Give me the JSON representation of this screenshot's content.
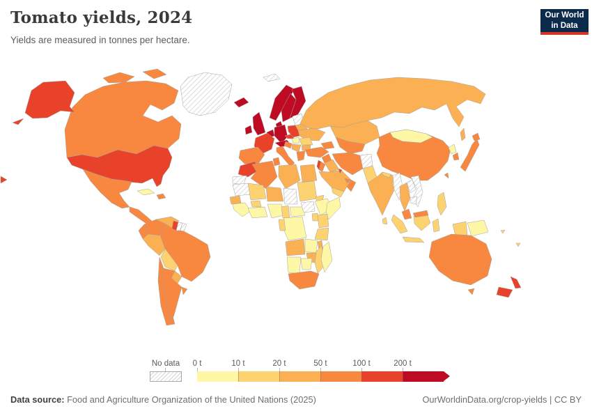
{
  "header": {
    "title": "Tomato yields, 2024",
    "subtitle": "Yields are measured in tonnes per hectare."
  },
  "logo": {
    "line1": "Our World",
    "line2": "in Data",
    "bg": "#0b2a4c",
    "accent": "#d8352a"
  },
  "legend": {
    "no_data_label": "No data",
    "tick_labels": [
      "0 t",
      "10 t",
      "20 t",
      "50 t",
      "100 t",
      "200 t"
    ],
    "bands": [
      "0-10",
      "10-20",
      "20-50",
      "50-100",
      "100-200",
      "200+"
    ]
  },
  "palette": {
    "0-10": "#fef8a6",
    "10-20": "#fdd271",
    "20-50": "#fbb153",
    "50-100": "#f8883f",
    "100-200": "#e8432a",
    "200+": "#be0b23",
    "no-data": "hatch"
  },
  "footer": {
    "source_label": "Data source:",
    "source_text": " Food and Agriculture Organization of the United Nations (2025)",
    "right_text": "OurWorldinData.org/crop-yields | CC BY"
  },
  "chart_data": {
    "type": "choropleth",
    "title": "Tomato yields, 2024",
    "unit": "tonnes per hectare",
    "bins": [
      0,
      10,
      20,
      50,
      100,
      200
    ],
    "legend_position": "bottom",
    "regions": [
      {
        "id": "usa",
        "name": "United States",
        "band": "100-200"
      },
      {
        "id": "canada",
        "name": "Canada",
        "band": "50-100"
      },
      {
        "id": "greenland",
        "name": "Greenland",
        "band": "no-data"
      },
      {
        "id": "mexico",
        "name": "Mexico",
        "band": "50-100"
      },
      {
        "id": "central-america",
        "name": "Central America",
        "band": "50-100"
      },
      {
        "id": "cuba",
        "name": "Cuba",
        "band": "0-10"
      },
      {
        "id": "hispaniola",
        "name": "Dominican Republic",
        "band": "50-100"
      },
      {
        "id": "colombia",
        "name": "Colombia",
        "band": "50-100"
      },
      {
        "id": "venezuela",
        "name": "Venezuela",
        "band": "20-50"
      },
      {
        "id": "guyana",
        "name": "Guyana",
        "band": "100-200"
      },
      {
        "id": "suriname",
        "name": "Suriname",
        "band": "no-data"
      },
      {
        "id": "french-guiana",
        "name": "French Guiana",
        "band": "no-data"
      },
      {
        "id": "ecuador",
        "name": "Ecuador",
        "band": "50-100"
      },
      {
        "id": "peru",
        "name": "Peru",
        "band": "20-50"
      },
      {
        "id": "brazil",
        "name": "Brazil",
        "band": "50-100"
      },
      {
        "id": "bolivia",
        "name": "Bolivia",
        "band": "10-20"
      },
      {
        "id": "paraguay",
        "name": "Paraguay",
        "band": "20-50"
      },
      {
        "id": "chile",
        "name": "Chile",
        "band": "50-100"
      },
      {
        "id": "argentina",
        "name": "Argentina",
        "band": "50-100"
      },
      {
        "id": "uruguay",
        "name": "Uruguay",
        "band": "50-100"
      },
      {
        "id": "iceland",
        "name": "Iceland",
        "band": "200+"
      },
      {
        "id": "svalbard",
        "name": "Svalbard",
        "band": "no-data"
      },
      {
        "id": "norway",
        "name": "Norway",
        "band": "200+"
      },
      {
        "id": "sweden",
        "name": "Sweden",
        "band": "200+"
      },
      {
        "id": "finland",
        "name": "Finland",
        "band": "200+"
      },
      {
        "id": "denmark",
        "name": "Denmark",
        "band": "200+"
      },
      {
        "id": "uk",
        "name": "United Kingdom",
        "band": "200+"
      },
      {
        "id": "ireland",
        "name": "Ireland",
        "band": "200+"
      },
      {
        "id": "benelux",
        "name": "Netherlands & Belgium",
        "band": "200+"
      },
      {
        "id": "germany",
        "name": "Germany",
        "band": "200+"
      },
      {
        "id": "alpine",
        "name": "Austria & Switzerland",
        "band": "200+"
      },
      {
        "id": "czechia",
        "name": "Czechia",
        "band": "100-200"
      },
      {
        "id": "france",
        "name": "France",
        "band": "100-200"
      },
      {
        "id": "spain",
        "name": "Spain & Portugal",
        "band": "50-100"
      },
      {
        "id": "italy",
        "name": "Italy",
        "band": "50-100"
      },
      {
        "id": "poland",
        "name": "Poland",
        "band": "100-200"
      },
      {
        "id": "baltics",
        "name": "Baltic states",
        "band": "no-data"
      },
      {
        "id": "belarus",
        "name": "Belarus",
        "band": "20-50"
      },
      {
        "id": "ukraine",
        "name": "Ukraine",
        "band": "20-50"
      },
      {
        "id": "hungary",
        "name": "Hungary",
        "band": "0-10"
      },
      {
        "id": "romania",
        "name": "Romania",
        "band": "10-20"
      },
      {
        "id": "balkans",
        "name": "Serbia & Balkans",
        "band": "20-50"
      },
      {
        "id": "croatia",
        "name": "Croatia",
        "band": "50-100"
      },
      {
        "id": "bulgaria",
        "name": "Bulgaria",
        "band": "20-50"
      },
      {
        "id": "greece",
        "name": "Greece",
        "band": "50-100"
      },
      {
        "id": "russia",
        "name": "Russia",
        "band": "20-50"
      },
      {
        "id": "kazakhstan",
        "name": "Kazakhstan",
        "band": "20-50"
      },
      {
        "id": "central-asia",
        "name": "Uzbekistan & Turkmenistan",
        "band": "50-100"
      },
      {
        "id": "caucasus",
        "name": "Caucasus",
        "band": "50-100"
      },
      {
        "id": "turkey",
        "name": "Turkey",
        "band": "50-100"
      },
      {
        "id": "syria",
        "name": "Syria",
        "band": "50-100"
      },
      {
        "id": "iraq",
        "name": "Iraq",
        "band": "20-50"
      },
      {
        "id": "israel",
        "name": "Israel",
        "band": "100-200"
      },
      {
        "id": "jordan",
        "name": "Jordan",
        "band": "50-100"
      },
      {
        "id": "saudi-arabia",
        "name": "Saudi Arabia",
        "band": "20-50"
      },
      {
        "id": "kuwait",
        "name": "Kuwait",
        "band": "100-200"
      },
      {
        "id": "yemen",
        "name": "Yemen",
        "band": "10-20"
      },
      {
        "id": "oman",
        "name": "Oman",
        "band": "50-100"
      },
      {
        "id": "uae",
        "name": "United Arab Emirates",
        "band": "50-100"
      },
      {
        "id": "iran",
        "name": "Iran",
        "band": "50-100"
      },
      {
        "id": "afghanistan",
        "name": "Afghanistan",
        "band": "no-data"
      },
      {
        "id": "pakistan",
        "name": "Pakistan",
        "band": "10-20"
      },
      {
        "id": "india",
        "name": "India",
        "band": "20-50"
      },
      {
        "id": "nepal",
        "name": "Nepal",
        "band": "10-20"
      },
      {
        "id": "bangladesh",
        "name": "Bangladesh",
        "band": "10-20"
      },
      {
        "id": "sri-lanka",
        "name": "Sri Lanka",
        "band": "10-20"
      },
      {
        "id": "china",
        "name": "China",
        "band": "50-100"
      },
      {
        "id": "mongolia",
        "name": "Mongolia",
        "band": "0-10"
      },
      {
        "id": "north-korea",
        "name": "North Korea",
        "band": "0-10"
      },
      {
        "id": "south-korea",
        "name": "South Korea",
        "band": "50-100"
      },
      {
        "id": "japan",
        "name": "Japan",
        "band": "50-100"
      },
      {
        "id": "taiwan",
        "name": "Taiwan",
        "band": "50-100"
      },
      {
        "id": "myanmar",
        "name": "Myanmar",
        "band": "no-data"
      },
      {
        "id": "thailand",
        "name": "Thailand",
        "band": "20-50"
      },
      {
        "id": "laos",
        "name": "Laos",
        "band": "no-data"
      },
      {
        "id": "vietnam",
        "name": "Vietnam",
        "band": "no-data"
      },
      {
        "id": "cambodia",
        "name": "Cambodia",
        "band": "no-data"
      },
      {
        "id": "malaysia",
        "name": "Malaysia",
        "band": "50-100"
      },
      {
        "id": "indonesia",
        "name": "Indonesia",
        "band": "10-20"
      },
      {
        "id": "philippines",
        "name": "Philippines",
        "band": "10-20"
      },
      {
        "id": "png",
        "name": "Papua New Guinea",
        "band": "0-10"
      },
      {
        "id": "australia",
        "name": "Australia",
        "band": "50-100"
      },
      {
        "id": "new-zealand",
        "name": "New Zealand",
        "band": "100-200"
      },
      {
        "id": "pacific-islands",
        "name": "Pacific islands",
        "band": "10-20"
      },
      {
        "id": "morocco",
        "name": "Morocco",
        "band": "100-200"
      },
      {
        "id": "western-sahara",
        "name": "Western Sahara",
        "band": "no-data"
      },
      {
        "id": "algeria",
        "name": "Algeria",
        "band": "50-100"
      },
      {
        "id": "tunisia",
        "name": "Tunisia",
        "band": "50-100"
      },
      {
        "id": "libya",
        "name": "Libya",
        "band": "20-50"
      },
      {
        "id": "egypt",
        "name": "Egypt",
        "band": "20-50"
      },
      {
        "id": "mauritania",
        "name": "Mauritania",
        "band": "no-data"
      },
      {
        "id": "mali",
        "name": "Mali",
        "band": "10-20"
      },
      {
        "id": "niger",
        "name": "Niger",
        "band": "20-50"
      },
      {
        "id": "chad",
        "name": "Chad",
        "band": "no-data"
      },
      {
        "id": "sudan",
        "name": "Sudan",
        "band": "10-20"
      },
      {
        "id": "eritrea",
        "name": "Eritrea",
        "band": "10-20"
      },
      {
        "id": "senegal",
        "name": "Senegal",
        "band": "20-50"
      },
      {
        "id": "guinea",
        "name": "Guinea region",
        "band": "0-10"
      },
      {
        "id": "burkina",
        "name": "Burkina Faso",
        "band": "10-20"
      },
      {
        "id": "gulf-coast",
        "name": "Cote d'Ivoire & Ghana",
        "band": "0-10"
      },
      {
        "id": "nigeria",
        "name": "Nigeria",
        "band": "0-10"
      },
      {
        "id": "cameroon",
        "name": "Cameroon",
        "band": "10-20"
      },
      {
        "id": "car",
        "name": "Central African Republic",
        "band": "0-10"
      },
      {
        "id": "south-sudan",
        "name": "South Sudan",
        "band": "no-data"
      },
      {
        "id": "ethiopia",
        "name": "Ethiopia",
        "band": "0-10"
      },
      {
        "id": "somalia",
        "name": "Somalia",
        "band": "0-10"
      },
      {
        "id": "kenya",
        "name": "Kenya",
        "band": "10-20"
      },
      {
        "id": "uganda",
        "name": "Uganda",
        "band": "10-20"
      },
      {
        "id": "drc",
        "name": "Democratic Republic of Congo",
        "band": "0-10"
      },
      {
        "id": "congo",
        "name": "Gabon & Congo",
        "band": "10-20"
      },
      {
        "id": "tanzania",
        "name": "Tanzania",
        "band": "10-20"
      },
      {
        "id": "angola",
        "name": "Angola",
        "band": "20-50"
      },
      {
        "id": "zambia",
        "name": "Zambia",
        "band": "0-10"
      },
      {
        "id": "malawi",
        "name": "Malawi",
        "band": "20-50"
      },
      {
        "id": "mozambique",
        "name": "Mozambique",
        "band": "10-20"
      },
      {
        "id": "zimbabwe",
        "name": "Zimbabwe",
        "band": "20-50"
      },
      {
        "id": "namibia",
        "name": "Namibia",
        "band": "0-10"
      },
      {
        "id": "botswana",
        "name": "Botswana",
        "band": "0-10"
      },
      {
        "id": "south-africa",
        "name": "South Africa",
        "band": "50-100"
      },
      {
        "id": "madagascar",
        "name": "Madagascar",
        "band": "0-10"
      }
    ]
  }
}
